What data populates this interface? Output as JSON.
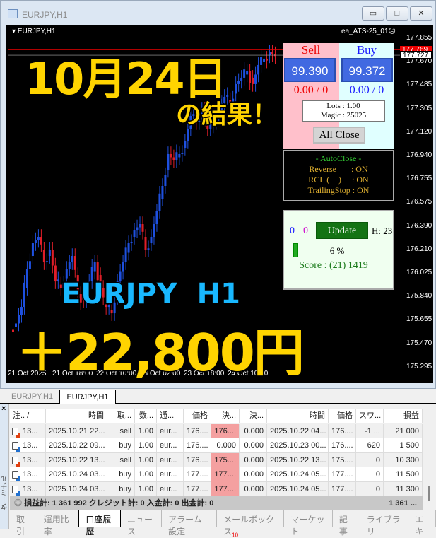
{
  "window": {
    "title": "EURJPY,H1",
    "min": "▭",
    "max": "□",
    "close": "✕"
  },
  "chart": {
    "symbol_label": "EURJPY,H1",
    "ea_label": "ea_ATS-25_01☹",
    "price_labels": [
      "177.855",
      "177.670",
      "177.485",
      "177.305",
      "177.120",
      "176.940",
      "176.755",
      "176.575",
      "176.390",
      "176.210",
      "176.025",
      "175.840",
      "175.655",
      "175.470",
      "175.295"
    ],
    "bid_tag": "177.769",
    "ask_tag": "177.727",
    "time_labels": [
      "21 Oct 2025",
      "21 Oct 18:00",
      "22 Oct 10:00",
      "23 Oct 02:00",
      "23 Oct 18:00",
      "24 Oct 10:00"
    ]
  },
  "chart_data": {
    "type": "candlestick",
    "ylim": [
      175.295,
      177.855
    ],
    "closes": [
      175.62,
      175.75,
      176.05,
      176.25,
      176.3,
      176.1,
      176.2,
      175.95,
      175.9,
      176.05,
      176.15,
      175.85,
      175.8,
      175.95,
      176.1,
      175.9,
      175.75,
      175.7,
      175.95,
      176.1,
      176.25,
      176.35,
      176.4,
      176.2,
      176.3,
      176.5,
      176.7,
      176.95,
      176.9,
      176.95,
      177.05,
      177.25,
      177.2,
      177.3,
      177.15,
      177.2,
      177.3,
      177.4,
      177.35,
      177.5,
      177.55,
      177.6,
      177.5,
      177.65,
      177.7,
      177.75,
      177.72
    ],
    "colors": {
      "up": "#1e50e0",
      "down": "#e01e28"
    }
  },
  "overlay": {
    "date": "10月24日",
    "result": "の結果！",
    "pair": "EURJPY  H1",
    "profit": "＋22,800円"
  },
  "ea_panel": {
    "sell_label": "Sell",
    "buy_label": "Buy",
    "sell_price": "99.390",
    "buy_price": "99.372",
    "sell_pos": "0.00 / 0",
    "buy_pos": "0.00 / 0",
    "lots": "Lots   : 1.00",
    "magic": "Magic : 25025",
    "all_close": "All Close",
    "autoclose_title": "- AutoClose -",
    "autoclose": [
      "Reverse       : ON",
      "RCI  ( + )     : ON",
      "TrailingStop : ON"
    ],
    "count_blue": "0",
    "count_magenta": "0",
    "update": "Update",
    "hour": "H: 23",
    "progress_pct": 6,
    "progress_text": "6 %",
    "score": "Score : (21) 1419"
  },
  "chart_tabs": [
    "EURJPY,H1",
    "EURJPY,H1"
  ],
  "terminal": {
    "side_label": "ターミナル",
    "columns": [
      "注.. /",
      "時間",
      "取...",
      "数...",
      "通...",
      "価格",
      "決...",
      "決...",
      "時間",
      "価格",
      "スワ...",
      "損益"
    ],
    "rows": [
      {
        "type": "sell",
        "cells": [
          "13...",
          "2025.10.21 22...",
          "sell",
          "1.00",
          "eur...",
          "176....",
          "176....",
          "0.000",
          "2025.10.22 04...",
          "176....",
          "-1 ...",
          "21 000"
        ],
        "hl": true
      },
      {
        "type": "buy",
        "cells": [
          "13...",
          "2025.10.22 09...",
          "buy",
          "1.00",
          "eur...",
          "176....",
          "0.000",
          "0.000",
          "2025.10.23 00...",
          "176....",
          "620",
          "1 500"
        ],
        "hl": false
      },
      {
        "type": "sell",
        "cells": [
          "13...",
          "2025.10.22 13...",
          "sell",
          "1.00",
          "eur...",
          "176....",
          "175....",
          "0.000",
          "2025.10.22 13...",
          "175....",
          "0",
          "10 300"
        ],
        "hl": true
      },
      {
        "type": "buy",
        "cells": [
          "13...",
          "2025.10.24 03...",
          "buy",
          "1.00",
          "eur...",
          "177....",
          "177....",
          "0.000",
          "2025.10.24 05...",
          "177....",
          "0",
          "11 500"
        ],
        "hl": true
      },
      {
        "type": "buy",
        "cells": [
          "13...",
          "2025.10.24 03...",
          "buy",
          "1.00",
          "eur...",
          "177....",
          "177....",
          "0.000",
          "2025.10.24 05...",
          "177....",
          "0",
          "11 300"
        ],
        "hl": true
      }
    ],
    "summary": "損益計: 1 361 992  クレジット計: 0  入金計: 0  出金計: 0",
    "summary_total": "1 361 ...",
    "tabs": [
      "取引",
      "運用比率",
      "口座履歴",
      "ニュース",
      "アラーム設定",
      "メールボックス",
      "マーケット",
      "記事",
      "ライブラリ",
      "エキ"
    ],
    "mail_badge": "10",
    "active_tab": 2
  }
}
